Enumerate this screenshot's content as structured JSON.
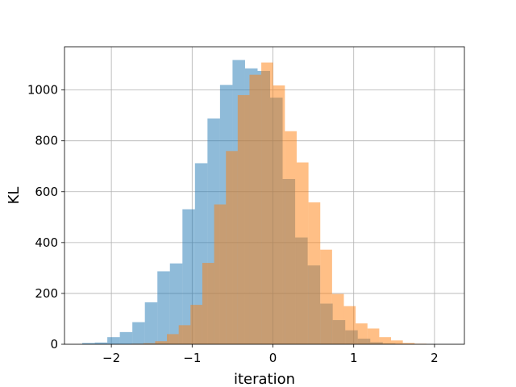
{
  "chart_data": {
    "type": "bar",
    "xlabel": "iteration",
    "ylabel": "KL",
    "xlim": [
      -2.58,
      2.37
    ],
    "ylim": [
      0,
      1170
    ],
    "x_ticks": [
      -2,
      -1,
      0,
      1,
      2
    ],
    "x_tick_labels": [
      "−2",
      "−1",
      "0",
      "1",
      "2"
    ],
    "y_ticks": [
      0,
      200,
      400,
      600,
      800,
      1000
    ],
    "y_tick_labels": [
      "0",
      "200",
      "400",
      "600",
      "800",
      "1000"
    ],
    "grid": true,
    "alpha": 0.5,
    "series": [
      {
        "color": "#1f77b4",
        "bin_start": -2.36,
        "bin_width": 0.155,
        "values": [
          5,
          7,
          28,
          48,
          87,
          165,
          287,
          318,
          531,
          712,
          888,
          1020,
          1118,
          1085,
          1075,
          970,
          650,
          420,
          310,
          160,
          95,
          55,
          22,
          8,
          3,
          1
        ]
      },
      {
        "color": "#ff7f0e",
        "bin_start": -1.75,
        "bin_width": 0.146,
        "values": [
          2,
          4,
          12,
          40,
          75,
          155,
          320,
          550,
          760,
          980,
          1060,
          1108,
          1018,
          838,
          715,
          558,
          372,
          198,
          150,
          82,
          62,
          28,
          15,
          5,
          2
        ]
      }
    ]
  }
}
